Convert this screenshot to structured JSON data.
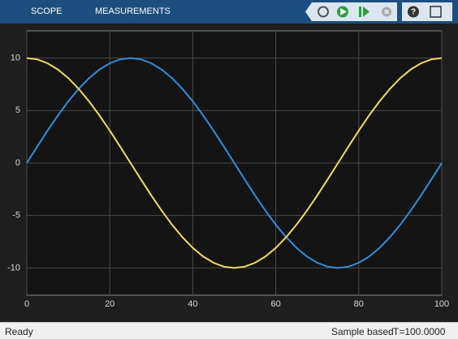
{
  "toolbar": {
    "tabs": [
      "SCOPE",
      "MEASUREMENTS"
    ]
  },
  "status": {
    "state": "Ready",
    "mode": "Sample based",
    "time": "T=100.0000"
  },
  "chart_data": {
    "type": "line",
    "x": [
      0,
      2.5,
      5,
      7.5,
      10,
      12.5,
      15,
      17.5,
      20,
      22.5,
      25,
      27.5,
      30,
      32.5,
      35,
      37.5,
      40,
      42.5,
      45,
      47.5,
      50,
      52.5,
      55,
      57.5,
      60,
      62.5,
      65,
      67.5,
      70,
      72.5,
      75,
      77.5,
      80,
      82.5,
      85,
      87.5,
      90,
      92.5,
      95,
      97.5,
      100
    ],
    "series": [
      {
        "color": "#2f8ee0",
        "values": [
          0,
          1.56,
          3.09,
          4.54,
          5.88,
          7.07,
          8.09,
          8.91,
          9.51,
          9.88,
          10,
          9.88,
          9.51,
          8.91,
          8.09,
          7.07,
          5.88,
          4.54,
          3.09,
          1.56,
          0,
          -1.56,
          -3.09,
          -4.54,
          -5.88,
          -7.07,
          -8.09,
          -8.91,
          -9.51,
          -9.88,
          -10,
          -9.88,
          -9.51,
          -8.91,
          -8.09,
          -7.07,
          -5.88,
          -4.54,
          -3.09,
          -1.56,
          0
        ]
      },
      {
        "color": "#f3db5c",
        "values": [
          10,
          9.88,
          9.51,
          8.91,
          8.09,
          7.07,
          5.88,
          4.54,
          3.09,
          1.56,
          0,
          -1.56,
          -3.09,
          -4.54,
          -5.88,
          -7.07,
          -8.09,
          -8.91,
          -9.51,
          -9.88,
          -10,
          -9.88,
          -9.51,
          -8.91,
          -8.09,
          -7.07,
          -5.88,
          -4.54,
          -3.09,
          -1.56,
          0,
          1.56,
          3.09,
          4.54,
          5.88,
          7.07,
          8.09,
          8.91,
          9.51,
          9.88,
          10
        ]
      }
    ],
    "xlim": [
      0,
      100
    ],
    "xticks": [
      0,
      20,
      40,
      60,
      80,
      100
    ],
    "ylim": [
      -12.6,
      12.6
    ],
    "yticks": [
      -10,
      -5,
      0,
      5,
      10
    ],
    "grid": true
  }
}
